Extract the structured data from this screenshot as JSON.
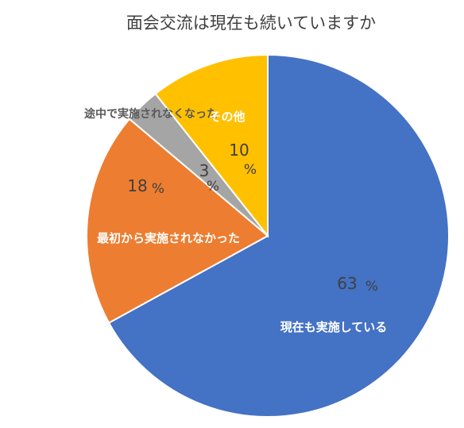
{
  "chart_data": {
    "type": "pie",
    "title": "面会交流は現在も続いていますか",
    "slices": [
      {
        "label": "現在も実施している",
        "value": 63,
        "pct_text": "%",
        "color": "#4472C4"
      },
      {
        "label": "最初から実施されなかった",
        "value": 18,
        "pct_text": "%",
        "color": "#ED7D31"
      },
      {
        "label": "途中で実施されなくなった",
        "value": 3,
        "pct_text": "%",
        "color": "#A5A5A5"
      },
      {
        "label": "その他",
        "value": 10,
        "pct_text": "%",
        "color": "#FFC000"
      }
    ],
    "start": "12 o'clock",
    "direction": "clockwise",
    "slice_border": "#ffffff"
  }
}
